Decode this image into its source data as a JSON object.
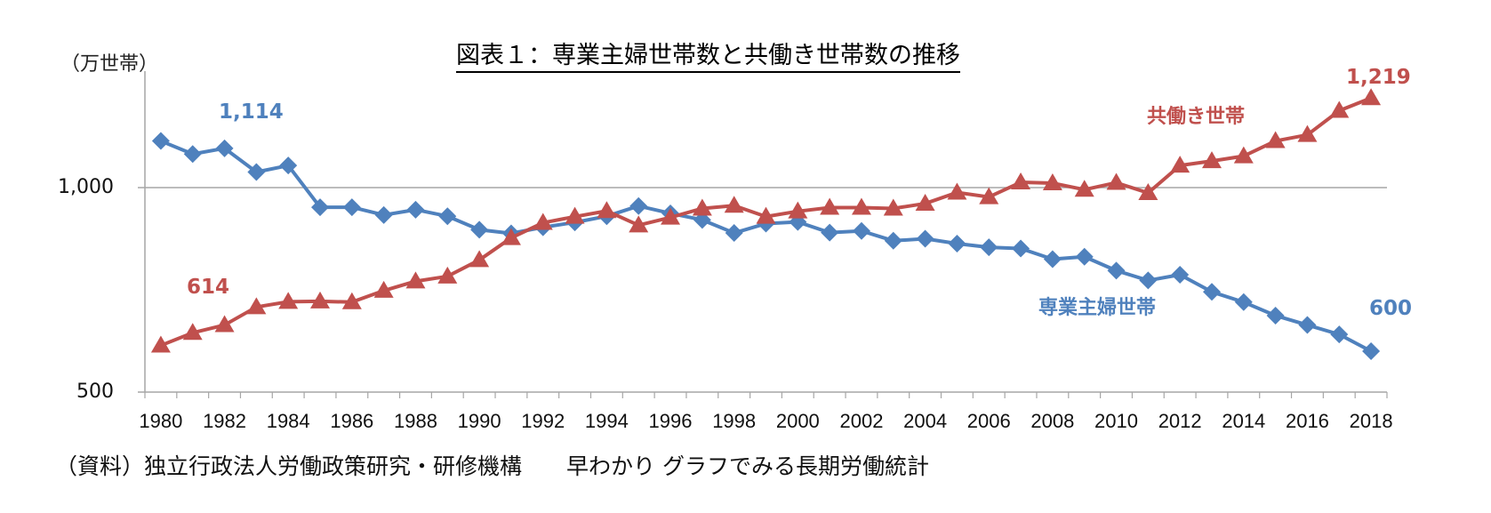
{
  "title": "図表１：専業主婦世帯数と共働き世帯数の推移",
  "unit_label": "（万世帯）",
  "source": "（資料）独立行政法人労働政策研究・研修機構　　早わかり グラフでみる長期労働統計",
  "colors": {
    "housewife": "#4F81BD",
    "dual": "#C0504D",
    "gridline": "#A6A6A6",
    "axis": "#A6A6A6"
  },
  "annotations": {
    "housewife_start": "1,114",
    "housewife_end": "600",
    "dual_start": "614",
    "dual_end": "1,219",
    "housewife_series_label": "専業主婦世帯",
    "dual_series_label": "共働き世帯"
  },
  "y_ticks": [
    "1,000",
    "500"
  ],
  "chart_data": {
    "type": "line",
    "title": "図表１：専業主婦世帯数と共働き世帯数の推移",
    "xlabel": "",
    "ylabel": "（万世帯）",
    "ylim": [
      500,
      1250
    ],
    "y_tick_values": [
      500,
      1000
    ],
    "grid": "horizontal at 1,000",
    "legend": "inline labels",
    "x": [
      1980,
      1981,
      1982,
      1983,
      1984,
      1985,
      1986,
      1987,
      1988,
      1989,
      1990,
      1991,
      1992,
      1993,
      1994,
      1995,
      1996,
      1997,
      1998,
      1999,
      2000,
      2001,
      2002,
      2003,
      2004,
      2005,
      2006,
      2007,
      2008,
      2009,
      2010,
      2011,
      2012,
      2013,
      2014,
      2015,
      2016,
      2017,
      2018
    ],
    "x_tick_labels": [
      "1980",
      "1982",
      "1984",
      "1986",
      "1988",
      "1990",
      "1992",
      "1994",
      "1996",
      "1998",
      "2000",
      "2002",
      "2004",
      "2006",
      "2008",
      "2010",
      "2012",
      "2014",
      "2016",
      "2018"
    ],
    "series": [
      {
        "name": "専業主婦世帯",
        "marker": "diamond",
        "values": [
          1114,
          1082,
          1096,
          1038,
          1054,
          952,
          952,
          933,
          946,
          930,
          897,
          888,
          903,
          915,
          930,
          955,
          937,
          921,
          889,
          912,
          916,
          890,
          894,
          870,
          875,
          863,
          854,
          851,
          825,
          831,
          797,
          773,
          787,
          745,
          720,
          687,
          664,
          641,
          600
        ]
      },
      {
        "name": "共働き世帯",
        "marker": "triangle",
        "values": [
          614,
          645,
          664,
          708,
          721,
          722,
          720,
          748,
          771,
          783,
          823,
          877,
          914,
          929,
          943,
          908,
          927,
          949,
          956,
          929,
          942,
          951,
          951,
          949,
          961,
          988,
          977,
          1013,
          1011,
          995,
          1012,
          987,
          1054,
          1065,
          1077,
          1114,
          1129,
          1188,
          1219
        ]
      }
    ],
    "annotations": [
      "1,114",
      "600",
      "614",
      "1,219",
      "専業主婦世帯",
      "共働き世帯"
    ],
    "source": "（資料）独立行政法人労働政策研究・研修機構　　早わかり グラフでみる長期労働統計"
  }
}
